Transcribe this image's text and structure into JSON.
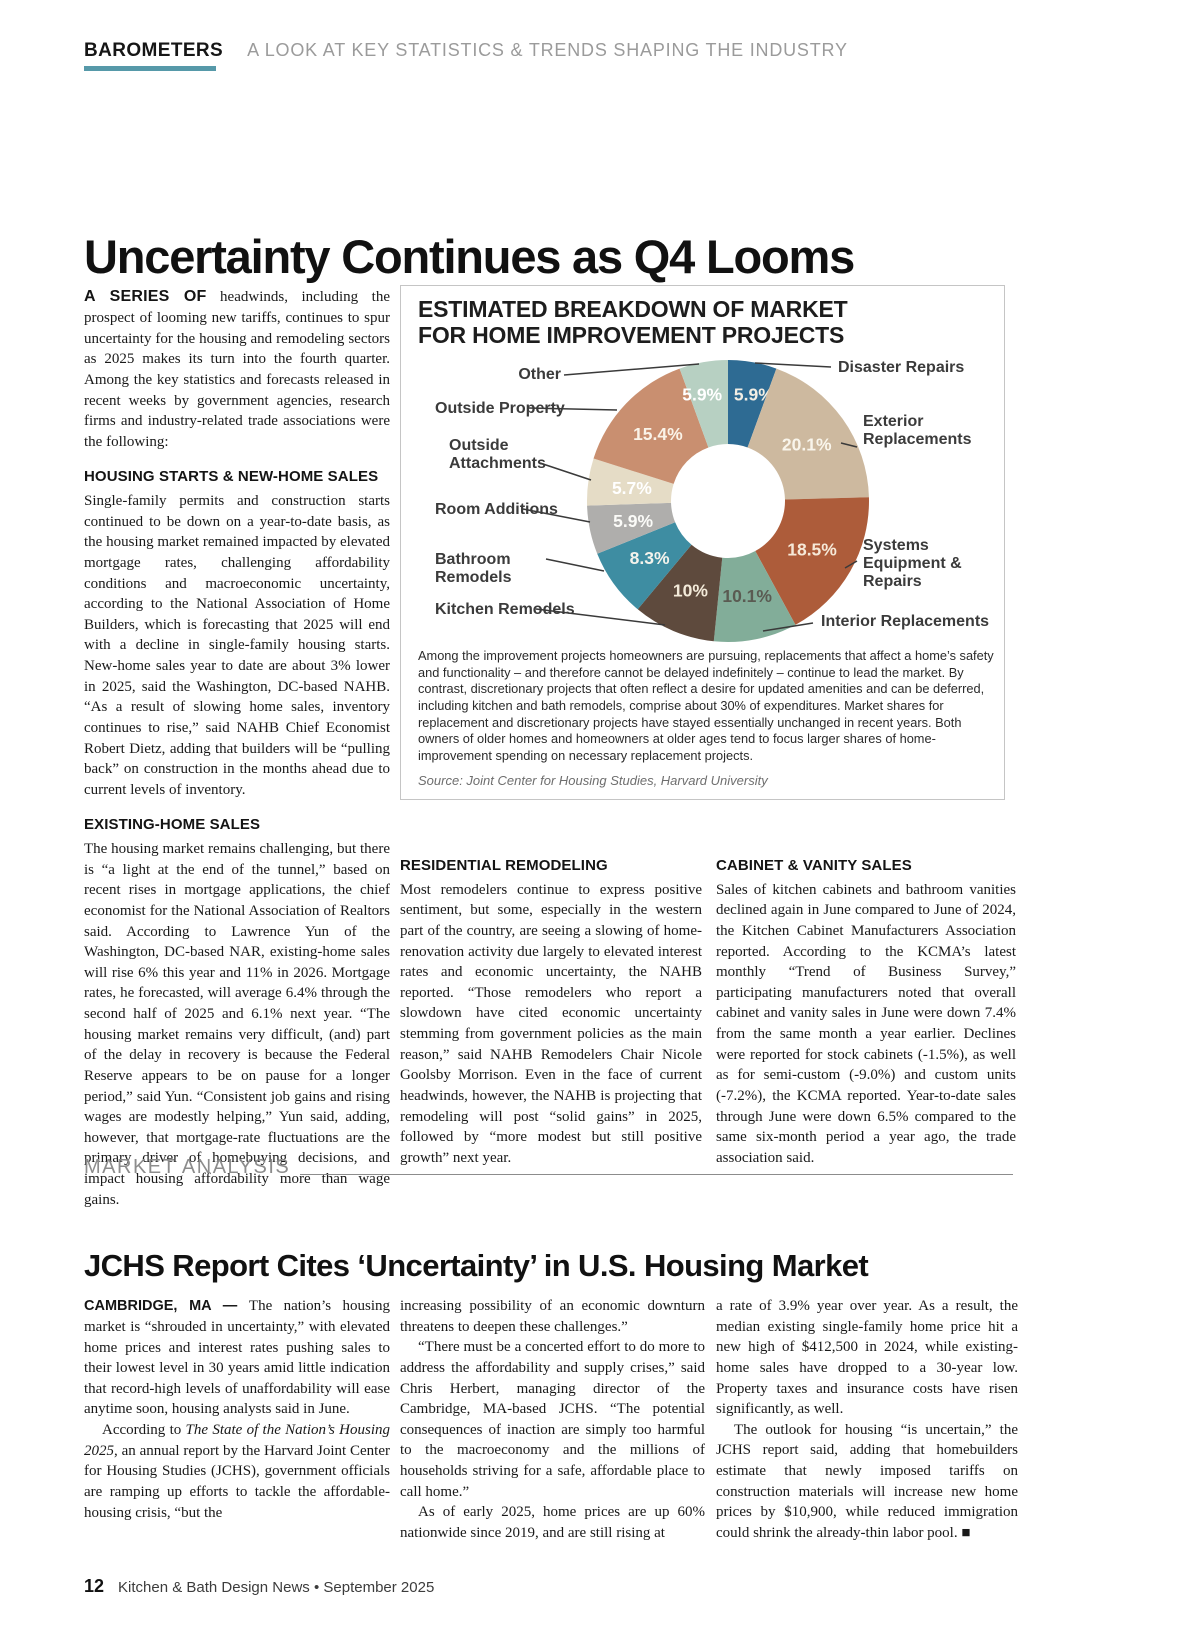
{
  "page": {
    "kicker": "BAROMETERS",
    "kicker_tagline": "A LOOK AT KEY STATISTICS & TRENDS SHAPING THE INDUSTRY",
    "footer_page_number": "12",
    "footer_text": "Kitchen & Bath Design News  •  September 2025"
  },
  "article1": {
    "headline": "Uncertainty Continues as Q4 Looms",
    "intro_lead": "A SERIES OF",
    "intro_rest": " headwinds, including the prospect of looming new tariffs, continues to spur uncertainty for the housing and remodeling sectors as 2025 makes its turn into the fourth quarter. Among the key statistics and forecasts released in recent weeks by government agencies, research firms and industry-related trade associations were the following:",
    "sections": [
      {
        "heading": "HOUSING STARTS & NEW-HOME SALES",
        "body": "Single-family permits and construction starts continued to be down on a year-to-date basis, as the housing market remained impacted by elevated mortgage rates, challenging affordability conditions and macroeconomic uncertainty, according to the National Association of Home Builders, which is forecasting that 2025 will end with a decline in single-family housing starts. New-home sales year to date are about 3% lower in 2025, said the Washington, DC-based NAHB. “As a result of slowing home sales, inventory continues to rise,” said NAHB Chief Economist Robert Dietz, adding that builders will be “pulling back” on construction in the months ahead due to current levels of inventory."
      },
      {
        "heading": "EXISTING-HOME SALES",
        "body": "The housing market remains challenging, but there is “a light at the end of the tunnel,” based on recent rises in mortgage applications, the chief economist for the National Association of Realtors said. According to Lawrence Yun of the Washington, DC-based NAR, existing-home sales will rise 6% this year and 11% in 2026. Mortgage rates, he forecasted, will average 6.4% through the second half of 2025 and 6.1% next year. “The housing market remains very difficult, (and) part of the delay in recovery is because the Federal Reserve appears to be on pause for a longer period,” said Yun. “Consistent job gains and rising wages are modestly helping,” Yun said, adding, however, that mortgage-rate fluctuations are the primary driver of homebuying decisions, and impact housing affordability more than wage gains."
      },
      {
        "heading": "RESIDENTIAL REMODELING",
        "body": "Most remodelers continue to express positive sentiment, but some, especially in the western part of the country, are seeing a slowing of home-renovation activity due largely to elevated interest rates and economic uncertainty, the NAHB reported. “Those remodelers who report a slowdown have cited economic uncertainty stemming from government policies as the main reason,” said NAHB Remodelers Chair Nicole Goolsby Morrison. Even in the face of current headwinds, however, the NAHB is projecting that remodeling will post “solid gains” in 2025, followed by “more modest but still positive growth” next year."
      },
      {
        "heading": "CABINET & VANITY SALES",
        "body": "Sales of kitchen cabinets and bathroom vanities declined again in June compared to June of 2024, the Kitchen Cabinet Manufacturers Association reported. According to the KCMA’s latest monthly “Trend of Business Survey,” participating manufacturers noted that overall cabinet and vanity sales in June were down 7.4% from the same month a year earlier. Declines were reported for stock cabinets (-1.5%), as well as for semi-custom (-9.0%) and custom units (-7.2%), the KCMA reported. Year-to-date sales through June were down 6.5% compared to the same six-month period a year ago, the trade association said."
      }
    ]
  },
  "chart_box": {
    "title_line1": "ESTIMATED BREAKDOWN OF MARKET",
    "title_line2": "FOR HOME IMPROVEMENT PROJECTS",
    "caption": "Among the improvement projects homeowners are pursuing, replacements that affect a home’s safety and functionality – and therefore cannot be delayed indefinitely – continue to lead the market. By contrast, discretionary projects that often reflect a desire for updated amenities and can be deferred, including kitchen and bath remodels, comprise about 30% of expenditures. Market shares for replacement and discretionary projects have stayed essentially unchanged in recent years. Both owners of older homes and homeowners at older ages tend to focus larger shares of home-improvement spending on necessary replacement projects.",
    "source": "Source: Joint Center for Housing Studies, Harvard University"
  },
  "chart_data": {
    "type": "pie",
    "title": "ESTIMATED BREAKDOWN OF MARKET FOR HOME IMPROVEMENT PROJECTS",
    "unit": "percent of market",
    "donut_hole": true,
    "start_angle_deg": 0,
    "direction": "clockwise",
    "segments": [
      {
        "label": "Disaster Repairs",
        "value": 5.9,
        "display": "5.9%",
        "color": "#2e6b93",
        "text_color": "#f2eee4"
      },
      {
        "label": "Exterior Replacements",
        "value": 20.1,
        "display": "20.1%",
        "color": "#cdb99f",
        "text_color": "#f9f5eb"
      },
      {
        "label": "Systems Equipment & Repairs",
        "value": 18.5,
        "display": "18.5%",
        "color": "#ad5c3a",
        "text_color": "#f6e9d8"
      },
      {
        "label": "Interior Replacements",
        "value": 10.1,
        "display": "10.1%",
        "color": "#82ad99",
        "text_color": "#5a5b52"
      },
      {
        "label": "Kitchen Remodels",
        "value": 10.0,
        "display": "10%",
        "color": "#5e4a3d",
        "text_color": "#f3ead9"
      },
      {
        "label": "Bathroom Remodels",
        "value": 8.3,
        "display": "8.3%",
        "color": "#3e8da2",
        "text_color": "#f4f3ec"
      },
      {
        "label": "Room Additions",
        "value": 5.9,
        "display": "5.9%",
        "color": "#afaeac",
        "text_color": "#fbfbf8"
      },
      {
        "label": "Outside Attachments",
        "value": 5.7,
        "display": "5.7%",
        "color": "#e5dcc6",
        "text_color": "#ffffff"
      },
      {
        "label": "Outside Property",
        "value": 15.4,
        "display": "15.4%",
        "color": "#c98f70",
        "text_color": "#faf3e8"
      },
      {
        "label": "Other",
        "value": 5.9,
        "display": "5.9%",
        "color": "#b7d0c2",
        "text_color": "#ffffff"
      }
    ]
  },
  "market_analysis": {
    "kicker": "MARKET ANALYSIS",
    "headline": "JCHS Report Cites ‘Uncertainty’ in U.S. Housing Market",
    "col1_p1_lead": "CAMBRIDGE, MA — ",
    "col1_p1_rest": "The nation’s housing market is “shrouded in uncertainty,” with elevated home prices and interest rates pushing sales to their lowest level in 30 years amid little indication that record-high levels of unaffordability will ease anytime soon, housing analysts said in June.",
    "col1_p2_pre": "According to ",
    "col1_p2_italic": "The State of the Nation’s Housing 2025",
    "col1_p2_post": ", an annual report by the Harvard Joint Center for Housing Studies (JCHS), government officials are ramping up efforts to tackle the affordable-housing crisis, “but the",
    "col2_p1": "increasing possibility of an economic downturn threatens to deepen these challenges.”",
    "col2_p2": "“There must be a concerted effort to do more to address the affordability and supply crises,” said Chris Herbert, managing director of the Cambridge, MA-based JCHS. “The potential consequences of inaction are simply too harmful to the macroeconomy and the millions of households striving for a safe, affordable place to call home.”",
    "col2_p3": "As of early 2025, home prices are up 60% nationwide since 2019, and are still rising at",
    "col3_p1": "a rate of 3.9% year over year. As a result, the median existing single-family home price hit a new high of $412,500 in 2024, while existing-home sales have dropped to a 30-year low. Property taxes and insurance costs have risen significantly, as well.",
    "col3_p2": "The outlook for housing “is uncertain,” the JCHS report said, adding that homebuilders estimate that newly imposed tariffs on construction materials will increase new home prices by $10,900, while reduced immigration could shrink the already-thin labor pool. ■"
  }
}
